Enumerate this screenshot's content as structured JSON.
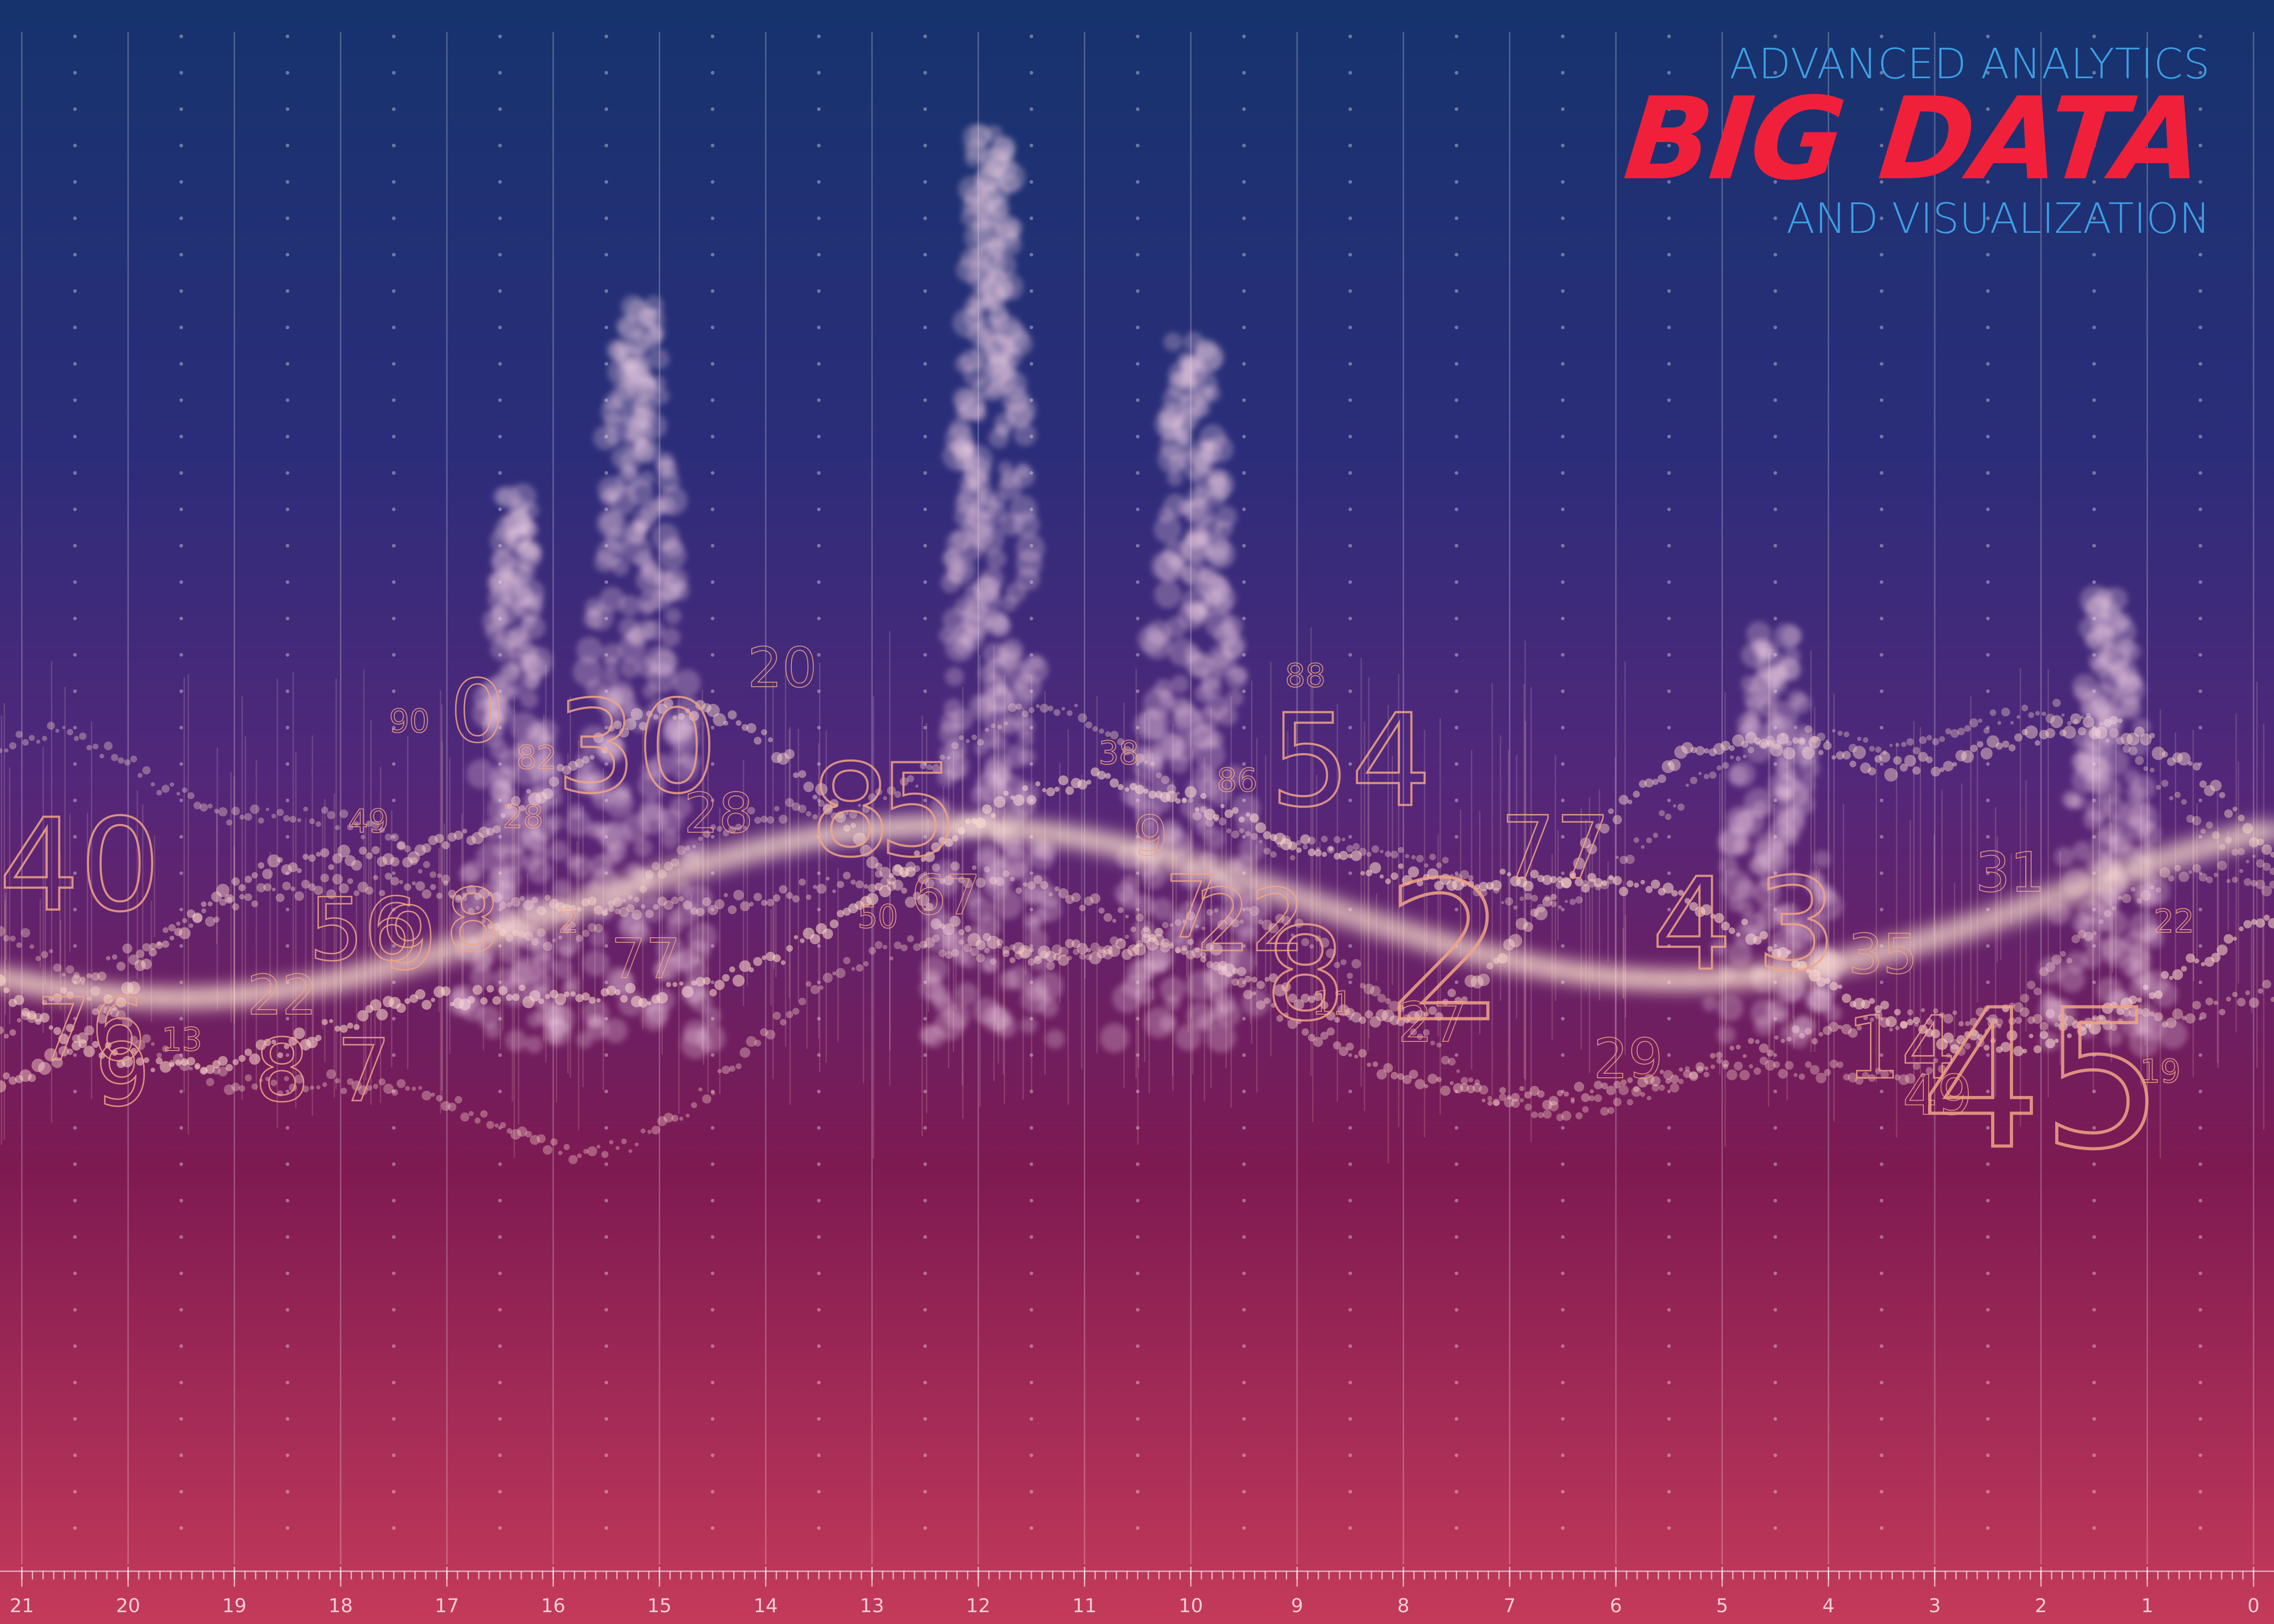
{
  "title": {
    "top": "ADVANCED ANALYTICS",
    "main": "BIG DATA",
    "bottom": "AND VISUALIZATION",
    "color_main": "#f0203b",
    "color_sub": "#3d9ee3"
  },
  "axis_labels": [
    "21",
    "20",
    "19",
    "18",
    "17",
    "16",
    "15",
    "14",
    "13",
    "12",
    "11",
    "10",
    "9",
    "8",
    "7",
    "6",
    "5",
    "4",
    "3",
    "2",
    "1",
    "0"
  ],
  "floating_numbers": [
    {
      "text": "40",
      "size": "xl"
    },
    {
      "text": "76",
      "size": "lg"
    },
    {
      "text": "9",
      "size": "lg"
    },
    {
      "text": "13",
      "size": "sm"
    },
    {
      "text": "22",
      "size": "md"
    },
    {
      "text": "8",
      "size": "lg"
    },
    {
      "text": "7",
      "size": "lg"
    },
    {
      "text": "56",
      "size": "lg"
    },
    {
      "text": "9",
      "size": "lg"
    },
    {
      "text": "8",
      "size": "lg"
    },
    {
      "text": "49",
      "size": "sm"
    },
    {
      "text": "90",
      "size": "sm"
    },
    {
      "text": "0",
      "size": "lg"
    },
    {
      "text": "82",
      "size": "sm"
    },
    {
      "text": "28",
      "size": "sm"
    },
    {
      "text": "30",
      "size": "xl"
    },
    {
      "text": "77",
      "size": "md"
    },
    {
      "text": "2",
      "size": "sm"
    },
    {
      "text": "28",
      "size": "md"
    },
    {
      "text": "20",
      "size": "md"
    },
    {
      "text": "8",
      "size": "xl"
    },
    {
      "text": "5",
      "size": "xl"
    },
    {
      "text": "67",
      "size": "md"
    },
    {
      "text": "50",
      "size": "sm"
    },
    {
      "text": "38",
      "size": "sm"
    },
    {
      "text": "9",
      "size": "md"
    },
    {
      "text": "88",
      "size": "sm"
    },
    {
      "text": "86",
      "size": "sm"
    },
    {
      "text": "54",
      "size": "xl"
    },
    {
      "text": "7",
      "size": "lg"
    },
    {
      "text": "22",
      "size": "lg"
    },
    {
      "text": "8",
      "size": "xl"
    },
    {
      "text": "11",
      "size": "sm"
    },
    {
      "text": "2",
      "size": "xxl"
    },
    {
      "text": "27",
      "size": "md"
    },
    {
      "text": "77",
      "size": "lg"
    },
    {
      "text": "4",
      "size": "xl"
    },
    {
      "text": "3",
      "size": "xl"
    },
    {
      "text": "35",
      "size": "md"
    },
    {
      "text": "29",
      "size": "md"
    },
    {
      "text": "14",
      "size": "lg"
    },
    {
      "text": "49",
      "size": "md"
    },
    {
      "text": "31",
      "size": "md"
    },
    {
      "text": "22",
      "size": "sm"
    },
    {
      "text": "45",
      "size": "xxl"
    },
    {
      "text": "19",
      "size": "sm"
    }
  ]
}
